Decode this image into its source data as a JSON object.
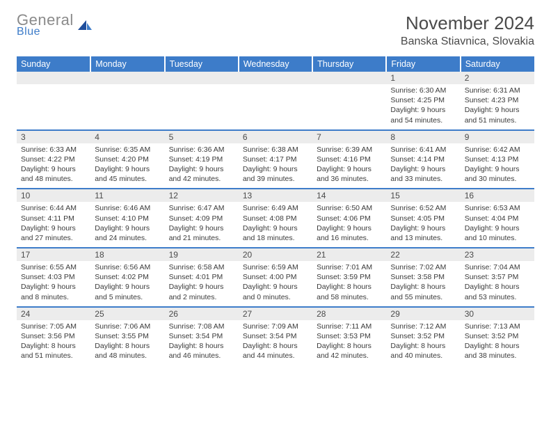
{
  "logo": {
    "text1": "General",
    "text2": "Blue",
    "color_general": "#8a8a8a",
    "color_blue": "#3d7cc9"
  },
  "title": "November 2024",
  "location": "Banska Stiavnica, Slovakia",
  "colors": {
    "header_bg": "#3d7cc9",
    "header_fg": "#ffffff",
    "daynum_bg": "#ececec",
    "text": "#4a4a4a",
    "separator": "#3d7cc9",
    "page_bg": "#ffffff"
  },
  "typography": {
    "title_fontsize": 26,
    "location_fontsize": 16,
    "header_fontsize": 12.5,
    "daynum_fontsize": 12,
    "cell_fontsize": 10.5
  },
  "dayHeaders": [
    "Sunday",
    "Monday",
    "Tuesday",
    "Wednesday",
    "Thursday",
    "Friday",
    "Saturday"
  ],
  "weeks": [
    [
      {
        "n": "",
        "sunrise": "",
        "sunset": "",
        "daylight": ""
      },
      {
        "n": "",
        "sunrise": "",
        "sunset": "",
        "daylight": ""
      },
      {
        "n": "",
        "sunrise": "",
        "sunset": "",
        "daylight": ""
      },
      {
        "n": "",
        "sunrise": "",
        "sunset": "",
        "daylight": ""
      },
      {
        "n": "",
        "sunrise": "",
        "sunset": "",
        "daylight": ""
      },
      {
        "n": "1",
        "sunrise": "6:30 AM",
        "sunset": "4:25 PM",
        "daylight": "9 hours and 54 minutes."
      },
      {
        "n": "2",
        "sunrise": "6:31 AM",
        "sunset": "4:23 PM",
        "daylight": "9 hours and 51 minutes."
      }
    ],
    [
      {
        "n": "3",
        "sunrise": "6:33 AM",
        "sunset": "4:22 PM",
        "daylight": "9 hours and 48 minutes."
      },
      {
        "n": "4",
        "sunrise": "6:35 AM",
        "sunset": "4:20 PM",
        "daylight": "9 hours and 45 minutes."
      },
      {
        "n": "5",
        "sunrise": "6:36 AM",
        "sunset": "4:19 PM",
        "daylight": "9 hours and 42 minutes."
      },
      {
        "n": "6",
        "sunrise": "6:38 AM",
        "sunset": "4:17 PM",
        "daylight": "9 hours and 39 minutes."
      },
      {
        "n": "7",
        "sunrise": "6:39 AM",
        "sunset": "4:16 PM",
        "daylight": "9 hours and 36 minutes."
      },
      {
        "n": "8",
        "sunrise": "6:41 AM",
        "sunset": "4:14 PM",
        "daylight": "9 hours and 33 minutes."
      },
      {
        "n": "9",
        "sunrise": "6:42 AM",
        "sunset": "4:13 PM",
        "daylight": "9 hours and 30 minutes."
      }
    ],
    [
      {
        "n": "10",
        "sunrise": "6:44 AM",
        "sunset": "4:11 PM",
        "daylight": "9 hours and 27 minutes."
      },
      {
        "n": "11",
        "sunrise": "6:46 AM",
        "sunset": "4:10 PM",
        "daylight": "9 hours and 24 minutes."
      },
      {
        "n": "12",
        "sunrise": "6:47 AM",
        "sunset": "4:09 PM",
        "daylight": "9 hours and 21 minutes."
      },
      {
        "n": "13",
        "sunrise": "6:49 AM",
        "sunset": "4:08 PM",
        "daylight": "9 hours and 18 minutes."
      },
      {
        "n": "14",
        "sunrise": "6:50 AM",
        "sunset": "4:06 PM",
        "daylight": "9 hours and 16 minutes."
      },
      {
        "n": "15",
        "sunrise": "6:52 AM",
        "sunset": "4:05 PM",
        "daylight": "9 hours and 13 minutes."
      },
      {
        "n": "16",
        "sunrise": "6:53 AM",
        "sunset": "4:04 PM",
        "daylight": "9 hours and 10 minutes."
      }
    ],
    [
      {
        "n": "17",
        "sunrise": "6:55 AM",
        "sunset": "4:03 PM",
        "daylight": "9 hours and 8 minutes."
      },
      {
        "n": "18",
        "sunrise": "6:56 AM",
        "sunset": "4:02 PM",
        "daylight": "9 hours and 5 minutes."
      },
      {
        "n": "19",
        "sunrise": "6:58 AM",
        "sunset": "4:01 PM",
        "daylight": "9 hours and 2 minutes."
      },
      {
        "n": "20",
        "sunrise": "6:59 AM",
        "sunset": "4:00 PM",
        "daylight": "9 hours and 0 minutes."
      },
      {
        "n": "21",
        "sunrise": "7:01 AM",
        "sunset": "3:59 PM",
        "daylight": "8 hours and 58 minutes."
      },
      {
        "n": "22",
        "sunrise": "7:02 AM",
        "sunset": "3:58 PM",
        "daylight": "8 hours and 55 minutes."
      },
      {
        "n": "23",
        "sunrise": "7:04 AM",
        "sunset": "3:57 PM",
        "daylight": "8 hours and 53 minutes."
      }
    ],
    [
      {
        "n": "24",
        "sunrise": "7:05 AM",
        "sunset": "3:56 PM",
        "daylight": "8 hours and 51 minutes."
      },
      {
        "n": "25",
        "sunrise": "7:06 AM",
        "sunset": "3:55 PM",
        "daylight": "8 hours and 48 minutes."
      },
      {
        "n": "26",
        "sunrise": "7:08 AM",
        "sunset": "3:54 PM",
        "daylight": "8 hours and 46 minutes."
      },
      {
        "n": "27",
        "sunrise": "7:09 AM",
        "sunset": "3:54 PM",
        "daylight": "8 hours and 44 minutes."
      },
      {
        "n": "28",
        "sunrise": "7:11 AM",
        "sunset": "3:53 PM",
        "daylight": "8 hours and 42 minutes."
      },
      {
        "n": "29",
        "sunrise": "7:12 AM",
        "sunset": "3:52 PM",
        "daylight": "8 hours and 40 minutes."
      },
      {
        "n": "30",
        "sunrise": "7:13 AM",
        "sunset": "3:52 PM",
        "daylight": "8 hours and 38 minutes."
      }
    ]
  ],
  "labels": {
    "sunrise": "Sunrise:",
    "sunset": "Sunset:",
    "daylight": "Daylight:"
  }
}
